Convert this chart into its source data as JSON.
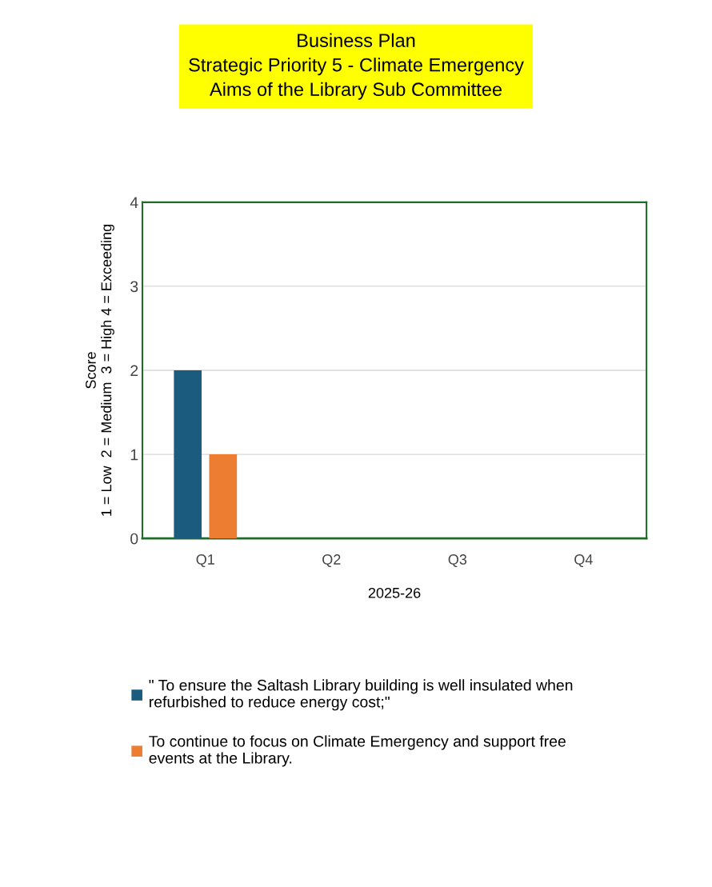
{
  "chart_data": {
    "type": "bar",
    "title": "Business Plan\nStrategic Priority 5 - Climate Emergency\nAims of the Library Sub Committee",
    "xlabel": "2025-26",
    "ylabel": "Score\n1 = Low  2 = Medium  3 = High 4 = Exceeding",
    "categories": [
      "Q1",
      "Q2",
      "Q3",
      "Q4"
    ],
    "series": [
      {
        "name": "\" To ensure the Saltash Library building is well insulated when\nrefurbished to reduce energy cost;\"",
        "color": "#1b5c7e",
        "values": [
          2,
          null,
          null,
          null
        ]
      },
      {
        "name": "To continue to focus on Climate Emergency and support free\nevents at the Library.",
        "color": "#ed7d31",
        "values": [
          1,
          null,
          null,
          null
        ]
      }
    ],
    "ylim": [
      0,
      4
    ],
    "yticks": [
      0,
      1,
      2,
      3,
      4
    ],
    "grid": "y",
    "legend": "bottom"
  }
}
